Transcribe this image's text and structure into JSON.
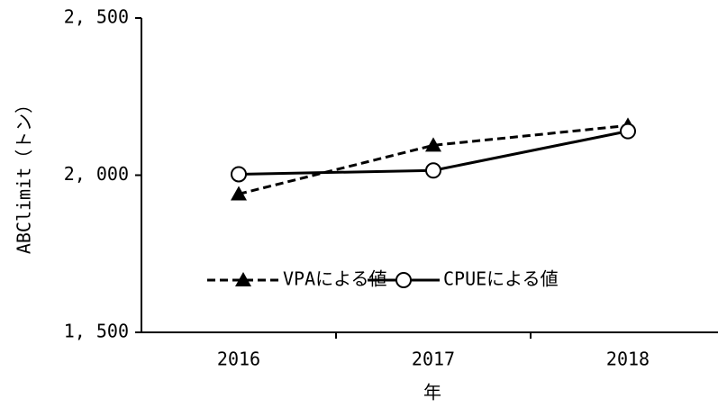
{
  "chart_data": {
    "type": "line",
    "y_label": "ABClimit（トン）",
    "x_label": "年",
    "categories": [
      "2016",
      "2017",
      "2018"
    ],
    "series": [
      {
        "name": "VPAによる値",
        "color": "#000000",
        "marker": "triangle",
        "dashed": true,
        "values": [
          1940,
          2095,
          2158
        ]
      },
      {
        "name": "CPUEによる値",
        "color": "#000000",
        "marker": "circle",
        "dashed": false,
        "values": [
          2003,
          2015,
          2140
        ]
      }
    ],
    "ylim": [
      1500,
      2500
    ],
    "yticks": [
      {
        "value": 1500,
        "label": "1, 500"
      },
      {
        "value": 2000,
        "label": "2, 000"
      },
      {
        "value": 2500,
        "label": "2, 500"
      }
    ],
    "grid": false
  }
}
